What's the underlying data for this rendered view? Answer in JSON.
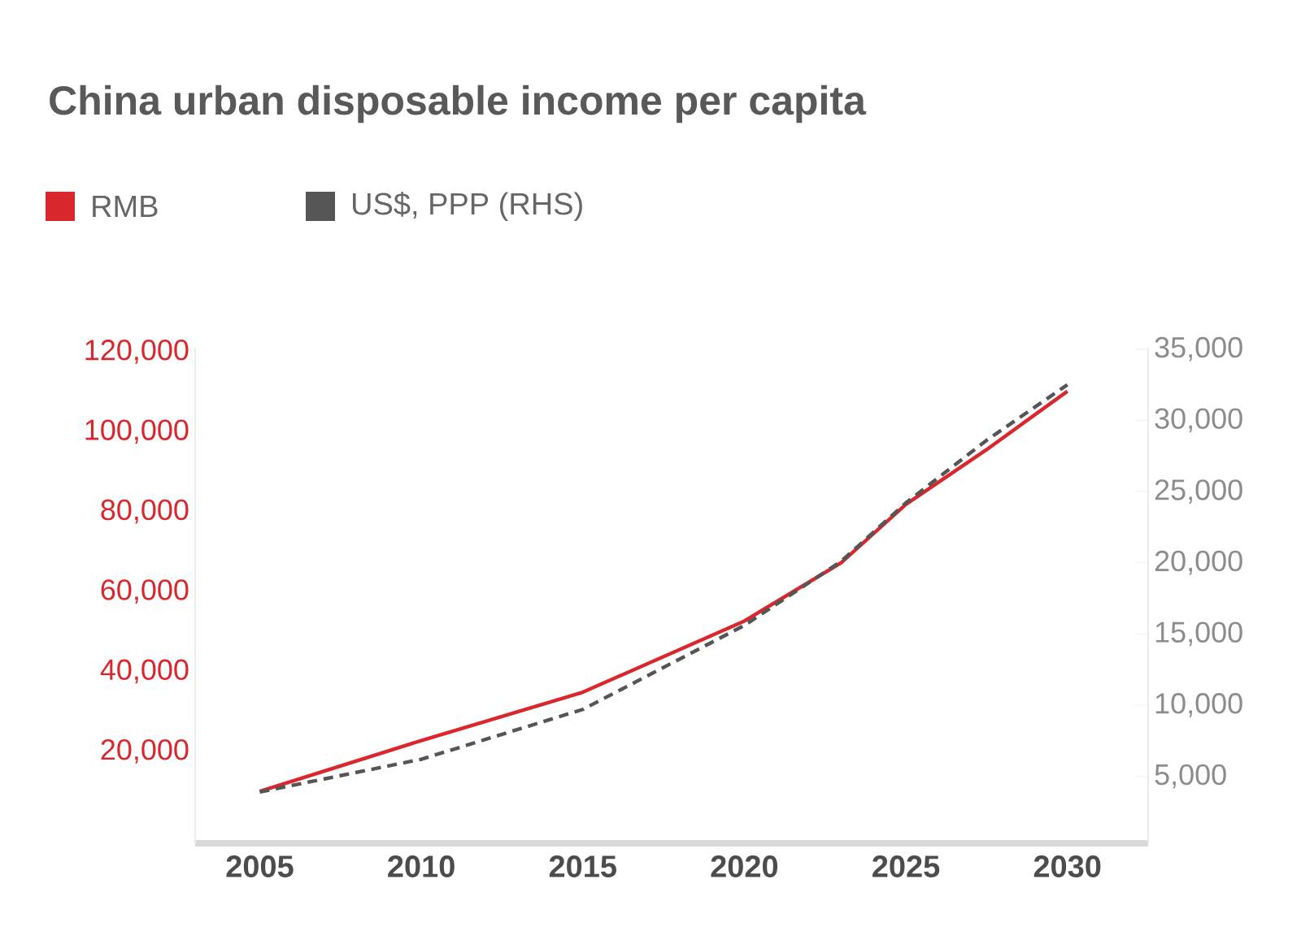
{
  "chart_data": {
    "type": "line",
    "title": "China urban disposable income per capita",
    "x": [
      2005,
      2010,
      2015,
      2020,
      2023,
      2025,
      2027.5,
      2030
    ],
    "series": [
      {
        "name": "RMB",
        "color": "#d9272e",
        "values": [
          10000,
          22700,
          34800,
          52600,
          67200,
          81800,
          95500,
          110100
        ]
      },
      {
        "name": "US$, PPP (RHS)",
        "color": "#555555",
        "axis": "y2",
        "line_style": "dashed",
        "values": [
          3900,
          6200,
          9700,
          15600,
          20100,
          24200,
          28600,
          32500
        ]
      }
    ],
    "xlim": [
      2003,
      2032.5
    ],
    "xticks": [
      2005,
      2010,
      2015,
      2020,
      2025,
      2030
    ],
    "ylim": [
      -3000,
      121000
    ],
    "yticks": [
      {
        "value": 20000,
        "label": "20,000"
      },
      {
        "value": 40000,
        "label": "40,000"
      },
      {
        "value": 60000,
        "label": "60,000"
      },
      {
        "value": 80000,
        "label": "80,000"
      },
      {
        "value": 100000,
        "label": "100,000"
      },
      {
        "value": 120000,
        "label": "120,000"
      }
    ],
    "y2lim": [
      300,
      35100
    ],
    "y2ticks": [
      {
        "value": 5000,
        "label": "5,000"
      },
      {
        "value": 10000,
        "label": "10,000"
      },
      {
        "value": 15000,
        "label": "15,000"
      },
      {
        "value": 20000,
        "label": "20,000"
      },
      {
        "value": 25000,
        "label": "25,000"
      },
      {
        "value": 30000,
        "label": "30,000"
      },
      {
        "value": 35000,
        "label": "35,000"
      }
    ],
    "legend": "top left",
    "grid": false,
    "line_style": "solid"
  }
}
